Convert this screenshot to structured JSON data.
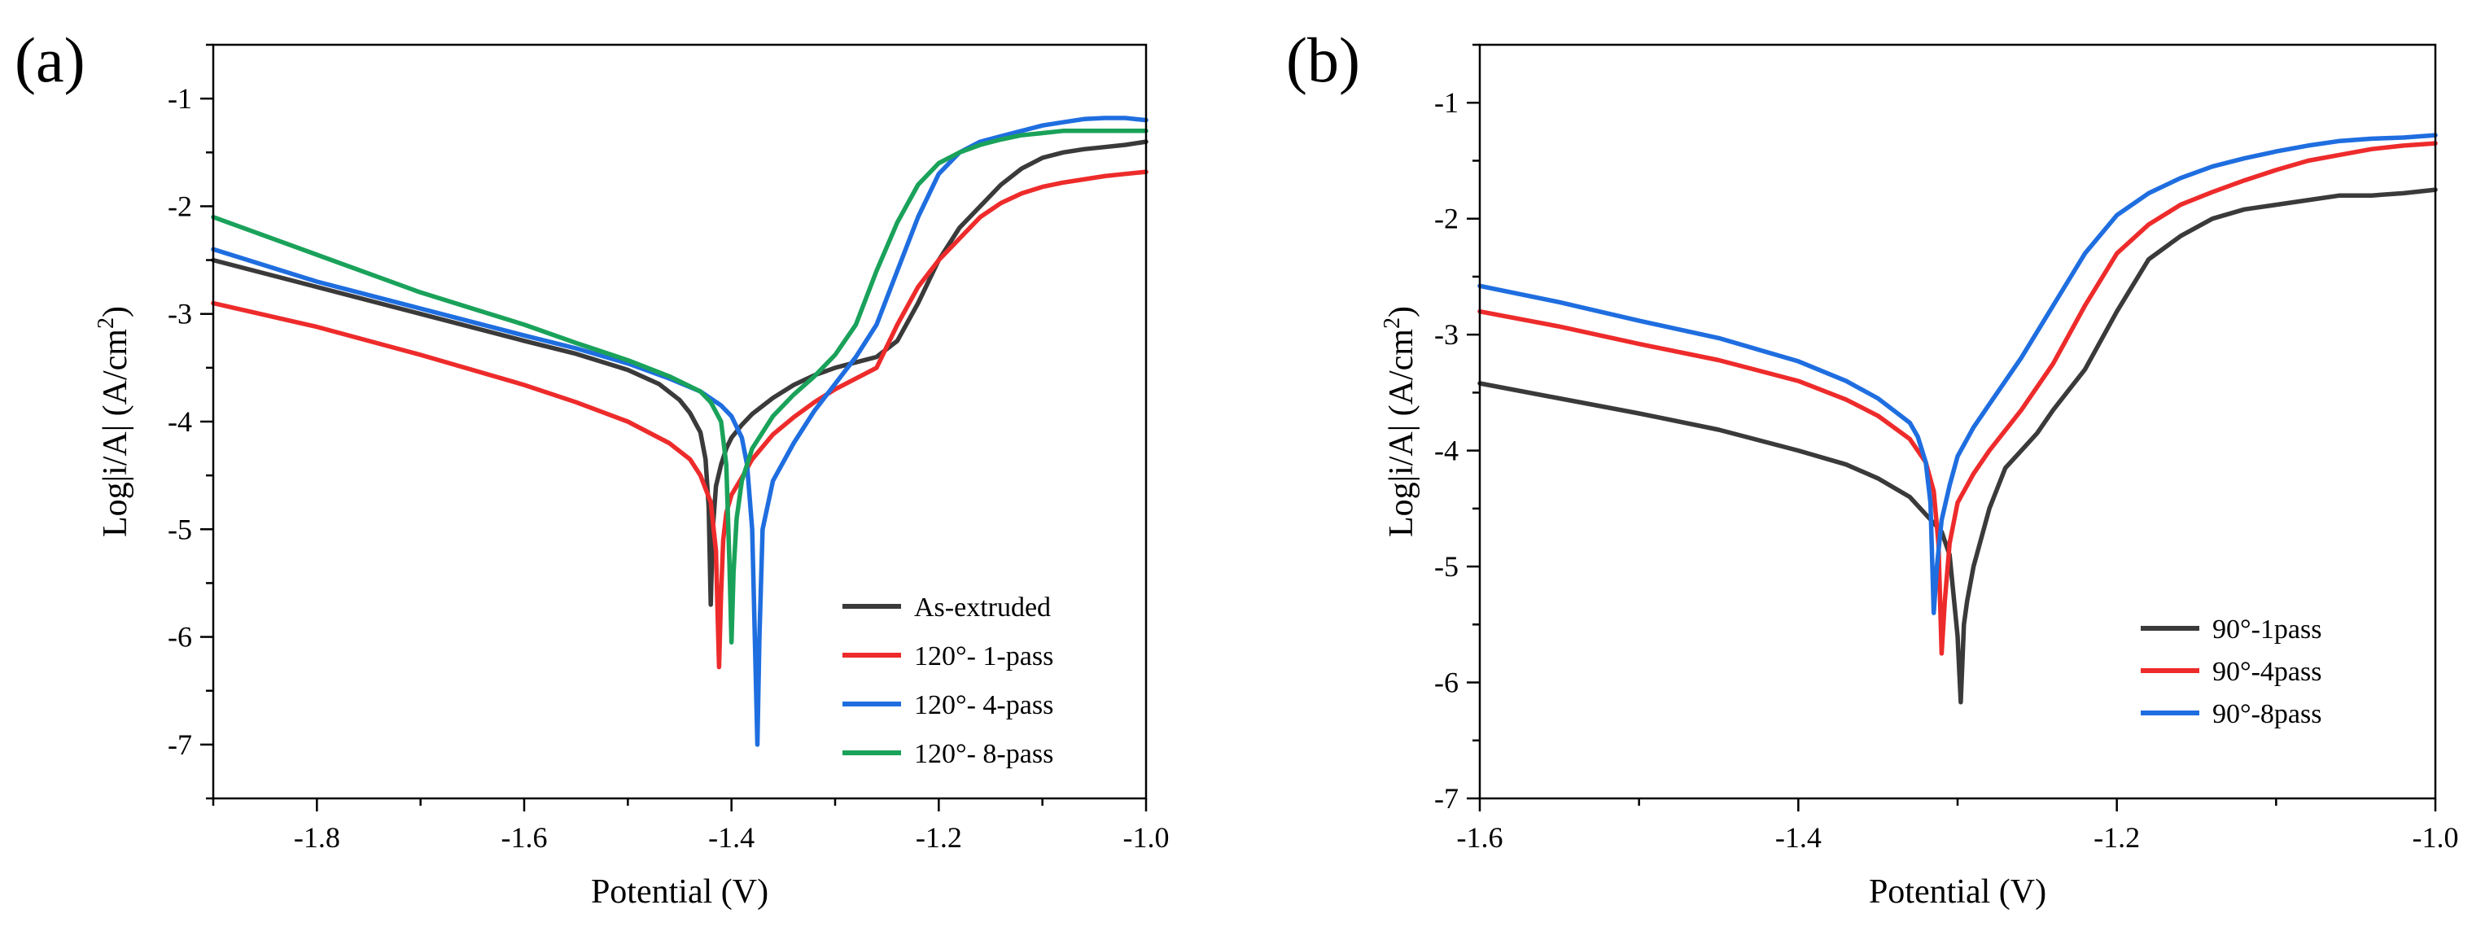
{
  "figure": {
    "panels": [
      "(a)",
      "(b)"
    ]
  },
  "chart_data": [
    {
      "type": "line",
      "panel_label": "(a)",
      "title": "",
      "xlabel": "Potential (V)",
      "ylabel": "Log|i/A| (A/cm²)",
      "ylabel_main": "Log|i/A| (A/cm",
      "ylabel_sup": "2",
      "ylabel_end": ")",
      "xlim": [
        -1.9,
        -1.0
      ],
      "ylim": [
        -7.5,
        -0.5
      ],
      "xticks": [
        -1.8,
        -1.6,
        -1.4,
        -1.2,
        -1.0
      ],
      "xtick_labels": [
        "-1.8",
        "-1.6",
        "-1.4",
        "-1.2",
        "-1.0"
      ],
      "yticks": [
        -7,
        -6,
        -5,
        -4,
        -3,
        -2,
        -1
      ],
      "ytick_labels": [
        "-7",
        "-6",
        "-5",
        "-4",
        "-3",
        "-2",
        "-1"
      ],
      "grid": false,
      "legend_position": "bottom-right",
      "series": [
        {
          "name": "As-extruded",
          "color": "#3a3a3a",
          "x": [
            -1.9,
            -1.8,
            -1.7,
            -1.6,
            -1.55,
            -1.5,
            -1.47,
            -1.45,
            -1.44,
            -1.43,
            -1.425,
            -1.422,
            -1.42,
            -1.418,
            -1.415,
            -1.41,
            -1.405,
            -1.4,
            -1.39,
            -1.38,
            -1.36,
            -1.34,
            -1.32,
            -1.3,
            -1.28,
            -1.26,
            -1.24,
            -1.22,
            -1.2,
            -1.18,
            -1.16,
            -1.14,
            -1.12,
            -1.1,
            -1.08,
            -1.06,
            -1.04,
            -1.02,
            -1.0
          ],
          "y": [
            -2.5,
            -2.75,
            -3.0,
            -3.25,
            -3.37,
            -3.52,
            -3.65,
            -3.8,
            -3.92,
            -4.1,
            -4.35,
            -4.8,
            -5.7,
            -5.0,
            -4.6,
            -4.4,
            -4.25,
            -4.15,
            -4.03,
            -3.93,
            -3.78,
            -3.66,
            -3.57,
            -3.5,
            -3.45,
            -3.4,
            -3.25,
            -2.9,
            -2.5,
            -2.2,
            -2.0,
            -1.8,
            -1.65,
            -1.55,
            -1.5,
            -1.47,
            -1.45,
            -1.43,
            -1.4
          ]
        },
        {
          "name": "120°- 1-pass",
          "color": "#ee2b2b",
          "x": [
            -1.9,
            -1.8,
            -1.7,
            -1.6,
            -1.55,
            -1.5,
            -1.46,
            -1.44,
            -1.43,
            -1.42,
            -1.415,
            -1.412,
            -1.41,
            -1.408,
            -1.405,
            -1.4,
            -1.39,
            -1.38,
            -1.36,
            -1.34,
            -1.32,
            -1.3,
            -1.28,
            -1.26,
            -1.24,
            -1.22,
            -1.2,
            -1.18,
            -1.16,
            -1.14,
            -1.12,
            -1.1,
            -1.08,
            -1.06,
            -1.04,
            -1.02,
            -1.0
          ],
          "y": [
            -2.9,
            -3.12,
            -3.38,
            -3.66,
            -3.82,
            -4.0,
            -4.2,
            -4.35,
            -4.5,
            -4.75,
            -5.2,
            -6.28,
            -5.6,
            -5.1,
            -4.85,
            -4.68,
            -4.52,
            -4.35,
            -4.12,
            -3.96,
            -3.82,
            -3.7,
            -3.6,
            -3.5,
            -3.1,
            -2.75,
            -2.5,
            -2.3,
            -2.1,
            -1.97,
            -1.88,
            -1.82,
            -1.78,
            -1.75,
            -1.72,
            -1.7,
            -1.68
          ]
        },
        {
          "name": "120°- 4-pass",
          "color": "#1f6ee0",
          "x": [
            -1.9,
            -1.8,
            -1.7,
            -1.6,
            -1.55,
            -1.5,
            -1.46,
            -1.43,
            -1.41,
            -1.4,
            -1.39,
            -1.385,
            -1.38,
            -1.378,
            -1.375,
            -1.373,
            -1.37,
            -1.36,
            -1.34,
            -1.32,
            -1.3,
            -1.28,
            -1.26,
            -1.24,
            -1.22,
            -1.2,
            -1.18,
            -1.16,
            -1.14,
            -1.12,
            -1.1,
            -1.08,
            -1.06,
            -1.04,
            -1.02,
            -1.0
          ],
          "y": [
            -2.4,
            -2.7,
            -2.95,
            -3.2,
            -3.32,
            -3.46,
            -3.6,
            -3.72,
            -3.85,
            -3.95,
            -4.15,
            -4.4,
            -5.0,
            -5.8,
            -7.0,
            -6.0,
            -5.0,
            -4.55,
            -4.2,
            -3.9,
            -3.65,
            -3.4,
            -3.1,
            -2.6,
            -2.1,
            -1.7,
            -1.5,
            -1.4,
            -1.35,
            -1.3,
            -1.25,
            -1.22,
            -1.19,
            -1.18,
            -1.18,
            -1.2
          ]
        },
        {
          "name": "120°- 8-pass",
          "color": "#1aa25a",
          "x": [
            -1.9,
            -1.8,
            -1.7,
            -1.6,
            -1.55,
            -1.5,
            -1.46,
            -1.43,
            -1.42,
            -1.41,
            -1.405,
            -1.402,
            -1.4,
            -1.398,
            -1.395,
            -1.39,
            -1.38,
            -1.36,
            -1.34,
            -1.32,
            -1.3,
            -1.28,
            -1.26,
            -1.24,
            -1.22,
            -1.2,
            -1.18,
            -1.16,
            -1.14,
            -1.12,
            -1.1,
            -1.08,
            -1.06,
            -1.04,
            -1.02,
            -1.0
          ],
          "y": [
            -2.1,
            -2.45,
            -2.8,
            -3.1,
            -3.27,
            -3.43,
            -3.58,
            -3.72,
            -3.82,
            -4.0,
            -4.4,
            -5.3,
            -6.05,
            -5.4,
            -4.9,
            -4.55,
            -4.25,
            -3.95,
            -3.75,
            -3.58,
            -3.38,
            -3.1,
            -2.6,
            -2.15,
            -1.8,
            -1.6,
            -1.5,
            -1.43,
            -1.38,
            -1.34,
            -1.32,
            -1.3,
            -1.3,
            -1.3,
            -1.3,
            -1.3
          ]
        }
      ]
    },
    {
      "type": "line",
      "panel_label": "(b)",
      "title": "",
      "xlabel": "Potential (V)",
      "ylabel": "Log|i/A| (A/cm²)",
      "ylabel_main": "Log|i/A| (A/cm",
      "ylabel_sup": "2",
      "ylabel_end": ")",
      "xlim": [
        -1.6,
        -1.0
      ],
      "ylim": [
        -7.0,
        -0.5
      ],
      "xticks": [
        -1.6,
        -1.4,
        -1.2,
        -1.0
      ],
      "xtick_labels": [
        "-1.6",
        "-1.4",
        "-1.2",
        "-1.0"
      ],
      "yticks": [
        -7,
        -6,
        -5,
        -4,
        -3,
        -2,
        -1
      ],
      "ytick_labels": [
        "-7",
        "-6",
        "-5",
        "-4",
        "-3",
        "-2",
        "-1"
      ],
      "grid": false,
      "legend_position": "bottom-right",
      "series": [
        {
          "name": "90°-1pass",
          "color": "#3a3a3a",
          "x": [
            -1.6,
            -1.55,
            -1.5,
            -1.45,
            -1.4,
            -1.37,
            -1.35,
            -1.33,
            -1.32,
            -1.31,
            -1.305,
            -1.3,
            -1.298,
            -1.296,
            -1.294,
            -1.29,
            -1.28,
            -1.27,
            -1.26,
            -1.25,
            -1.24,
            -1.22,
            -1.2,
            -1.18,
            -1.16,
            -1.14,
            -1.12,
            -1.1,
            -1.08,
            -1.06,
            -1.04,
            -1.02,
            -1.0
          ],
          "y": [
            -3.42,
            -3.55,
            -3.68,
            -3.82,
            -4.0,
            -4.12,
            -4.24,
            -4.4,
            -4.55,
            -4.7,
            -4.9,
            -5.6,
            -6.17,
            -5.5,
            -5.3,
            -5.0,
            -4.5,
            -4.15,
            -4.0,
            -3.85,
            -3.65,
            -3.3,
            -2.8,
            -2.35,
            -2.15,
            -2.0,
            -1.92,
            -1.88,
            -1.84,
            -1.8,
            -1.8,
            -1.78,
            -1.75
          ]
        },
        {
          "name": "90°-4pass",
          "color": "#ee2b2b",
          "x": [
            -1.6,
            -1.55,
            -1.5,
            -1.45,
            -1.4,
            -1.37,
            -1.35,
            -1.33,
            -1.32,
            -1.315,
            -1.312,
            -1.31,
            -1.308,
            -1.305,
            -1.3,
            -1.29,
            -1.28,
            -1.26,
            -1.24,
            -1.22,
            -1.2,
            -1.18,
            -1.16,
            -1.14,
            -1.12,
            -1.1,
            -1.08,
            -1.06,
            -1.04,
            -1.02,
            -1.0
          ],
          "y": [
            -2.8,
            -2.93,
            -3.08,
            -3.22,
            -3.4,
            -3.56,
            -3.7,
            -3.9,
            -4.1,
            -4.35,
            -4.8,
            -5.75,
            -5.3,
            -4.8,
            -4.45,
            -4.2,
            -4.0,
            -3.65,
            -3.25,
            -2.75,
            -2.3,
            -2.05,
            -1.88,
            -1.77,
            -1.67,
            -1.58,
            -1.5,
            -1.45,
            -1.4,
            -1.37,
            -1.35
          ]
        },
        {
          "name": "90°-8pass",
          "color": "#1f6ee0",
          "x": [
            -1.6,
            -1.55,
            -1.5,
            -1.45,
            -1.4,
            -1.37,
            -1.35,
            -1.33,
            -1.325,
            -1.32,
            -1.317,
            -1.315,
            -1.313,
            -1.31,
            -1.305,
            -1.3,
            -1.29,
            -1.28,
            -1.26,
            -1.24,
            -1.22,
            -1.2,
            -1.18,
            -1.16,
            -1.14,
            -1.12,
            -1.1,
            -1.08,
            -1.06,
            -1.04,
            -1.02,
            -1.0
          ],
          "y": [
            -2.58,
            -2.72,
            -2.88,
            -3.03,
            -3.23,
            -3.4,
            -3.55,
            -3.76,
            -3.88,
            -4.1,
            -4.45,
            -5.4,
            -5.0,
            -4.6,
            -4.3,
            -4.05,
            -3.8,
            -3.6,
            -3.2,
            -2.75,
            -2.3,
            -1.97,
            -1.78,
            -1.65,
            -1.55,
            -1.48,
            -1.42,
            -1.37,
            -1.33,
            -1.31,
            -1.3,
            -1.28
          ]
        }
      ]
    }
  ]
}
